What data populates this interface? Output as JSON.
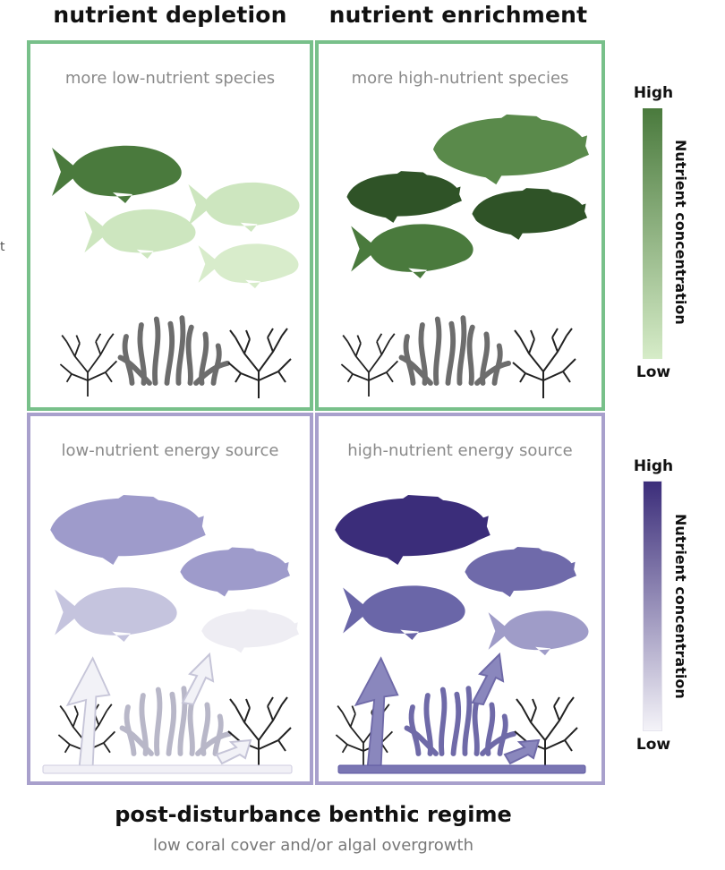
{
  "columns": {
    "left_title": "nutrient depletion",
    "right_title": "nutrient enrichment"
  },
  "panels": {
    "top_left": "more low-nutrient species",
    "top_right": "more high-nutrient species",
    "bottom_left": "low-nutrient energy source",
    "bottom_right": "high-nutrient energy source"
  },
  "scales": {
    "green": {
      "high": "High",
      "low": "Low",
      "title": "Nutrient concentration",
      "color_high": "#4a7a3d",
      "color_low": "#d6ecc8"
    },
    "purple": {
      "high": "High",
      "low": "Low",
      "title": "Nutrient concentration",
      "color_high": "#3b2d7a",
      "color_low": "#f4f3f8"
    }
  },
  "edge_fragment": "t",
  "footer": {
    "title": "post-disturbance benthic regime",
    "subtitle": "low coral cover and/or algal overgrowth"
  },
  "colors": {
    "green_border": "#78c08a",
    "purple_border": "#a8a0cc"
  }
}
